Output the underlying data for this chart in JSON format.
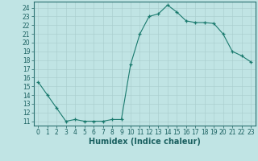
{
  "x": [
    0,
    1,
    2,
    3,
    4,
    5,
    6,
    7,
    8,
    9,
    10,
    11,
    12,
    13,
    14,
    15,
    16,
    17,
    18,
    19,
    20,
    21,
    22,
    23
  ],
  "y": [
    15.5,
    14.0,
    12.5,
    11.0,
    11.2,
    11.0,
    11.0,
    11.0,
    11.2,
    11.2,
    17.5,
    21.0,
    23.0,
    23.3,
    24.3,
    23.5,
    22.5,
    22.3,
    22.3,
    22.2,
    21.0,
    19.0,
    18.5,
    17.8
  ],
  "line_color": "#1a7a6e",
  "marker": "+",
  "marker_color": "#1a7a6e",
  "bg_color": "#c0e4e4",
  "grid_color": "#a8cccc",
  "xlabel": "Humidex (Indice chaleur)",
  "xlim": [
    -0.5,
    23.5
  ],
  "ylim": [
    10.5,
    24.7
  ],
  "yticks": [
    11,
    12,
    13,
    14,
    15,
    16,
    17,
    18,
    19,
    20,
    21,
    22,
    23,
    24
  ],
  "xticks": [
    0,
    1,
    2,
    3,
    4,
    5,
    6,
    7,
    8,
    9,
    10,
    11,
    12,
    13,
    14,
    15,
    16,
    17,
    18,
    19,
    20,
    21,
    22,
    23
  ],
  "tick_color": "#1a6060",
  "label_color": "#1a6060",
  "spine_color": "#2a7070",
  "xlabel_fontsize": 7,
  "tick_fontsize": 5.5
}
